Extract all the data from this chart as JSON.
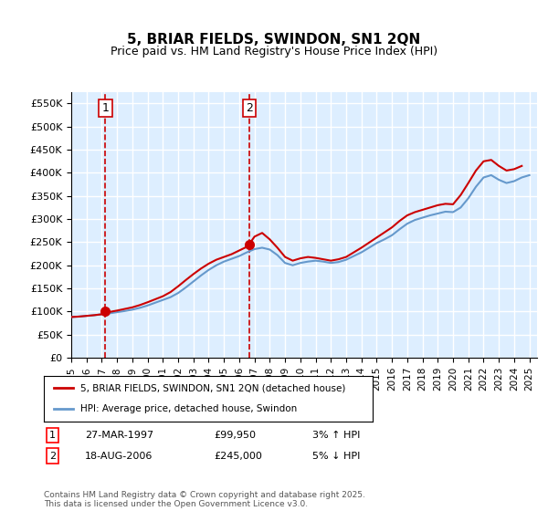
{
  "title": "5, BRIAR FIELDS, SWINDON, SN1 2QN",
  "subtitle": "Price paid vs. HM Land Registry's House Price Index (HPI)",
  "ylabel_ticks": [
    "£0",
    "£50K",
    "£100K",
    "£150K",
    "£200K",
    "£250K",
    "£300K",
    "£350K",
    "£400K",
    "£450K",
    "£500K",
    "£550K"
  ],
  "ytick_values": [
    0,
    50000,
    100000,
    150000,
    200000,
    250000,
    300000,
    350000,
    400000,
    450000,
    500000,
    550000
  ],
  "ylim": [
    0,
    575000
  ],
  "xlim_start": 1995.0,
  "xlim_end": 2025.5,
  "purchase1": {
    "date": 1997.24,
    "price": 99950,
    "label": "1"
  },
  "purchase2": {
    "date": 2006.64,
    "price": 245000,
    "label": "2"
  },
  "legend_line1": "5, BRIAR FIELDS, SWINDON, SN1 2QN (detached house)",
  "legend_line2": "HPI: Average price, detached house, Swindon",
  "table_row1": [
    "1",
    "27-MAR-1997",
    "£99,950",
    "3% ↑ HPI"
  ],
  "table_row2": [
    "2",
    "18-AUG-2006",
    "£245,000",
    "5% ↓ HPI"
  ],
  "footer": "Contains HM Land Registry data © Crown copyright and database right 2025.\nThis data is licensed under the Open Government Licence v3.0.",
  "line_color_red": "#cc0000",
  "line_color_blue": "#6699cc",
  "background_color": "#ddeeff",
  "plot_bg": "#ddeeff",
  "grid_color": "#ffffff",
  "dashed_color": "#cc0000",
  "hpi_years": [
    1995,
    1995.5,
    1996,
    1996.5,
    1997,
    1997.5,
    1998,
    1998.5,
    1999,
    1999.5,
    2000,
    2000.5,
    2001,
    2001.5,
    2002,
    2002.5,
    2003,
    2003.5,
    2004,
    2004.5,
    2005,
    2005.5,
    2006,
    2006.5,
    2007,
    2007.5,
    2008,
    2008.5,
    2009,
    2009.5,
    2010,
    2010.5,
    2011,
    2011.5,
    2012,
    2012.5,
    2013,
    2013.5,
    2014,
    2014.5,
    2015,
    2015.5,
    2016,
    2016.5,
    2017,
    2017.5,
    2018,
    2018.5,
    2019,
    2019.5,
    2020,
    2020.5,
    2021,
    2021.5,
    2022,
    2022.5,
    2023,
    2023.5,
    2024,
    2024.5,
    2025
  ],
  "hpi_values": [
    88000,
    89000,
    90500,
    92000,
    94000,
    96000,
    98500,
    101000,
    104000,
    108000,
    113000,
    119000,
    125000,
    131000,
    140000,
    152000,
    165000,
    178000,
    190000,
    200000,
    208000,
    214000,
    220000,
    228000,
    235000,
    238000,
    234000,
    222000,
    205000,
    200000,
    205000,
    208000,
    210000,
    208000,
    205000,
    207000,
    212000,
    220000,
    228000,
    238000,
    248000,
    256000,
    265000,
    278000,
    290000,
    298000,
    303000,
    308000,
    312000,
    316000,
    315000,
    325000,
    345000,
    370000,
    390000,
    395000,
    385000,
    378000,
    382000,
    390000,
    395000
  ],
  "price_years": [
    1995.0,
    1995.5,
    1996.0,
    1996.5,
    1997.0,
    1997.24,
    1997.5,
    1998.0,
    1998.5,
    1999.0,
    1999.5,
    2000.0,
    2000.5,
    2001.0,
    2001.5,
    2002.0,
    2002.5,
    2003.0,
    2003.5,
    2004.0,
    2004.5,
    2005.0,
    2005.5,
    2006.0,
    2006.5,
    2006.64,
    2007.0,
    2007.5,
    2008.0,
    2008.5,
    2009.0,
    2009.5,
    2010.0,
    2010.5,
    2011.0,
    2011.5,
    2012.0,
    2012.5,
    2013.0,
    2013.5,
    2014.0,
    2014.5,
    2015.0,
    2015.5,
    2016.0,
    2016.5,
    2017.0,
    2017.5,
    2018.0,
    2018.5,
    2019.0,
    2019.5,
    2020.0,
    2020.5,
    2021.0,
    2021.5,
    2022.0,
    2022.5,
    2023.0,
    2023.5,
    2024.0,
    2024.5
  ],
  "price_values": [
    88000,
    89000,
    90500,
    92000,
    94000,
    99950,
    99000,
    102000,
    105500,
    109000,
    114000,
    120000,
    126500,
    133000,
    142000,
    154500,
    168000,
    181000,
    193000,
    203500,
    212000,
    218000,
    224000,
    232000,
    240000,
    245000,
    262000,
    270000,
    256000,
    238000,
    218000,
    210000,
    215000,
    218000,
    216000,
    213000,
    210000,
    213000,
    218000,
    228000,
    238000,
    249000,
    260000,
    271000,
    282000,
    296000,
    308000,
    315000,
    320000,
    325000,
    330000,
    333000,
    332000,
    352000,
    378000,
    405000,
    425000,
    428000,
    415000,
    405000,
    408000,
    415000
  ]
}
